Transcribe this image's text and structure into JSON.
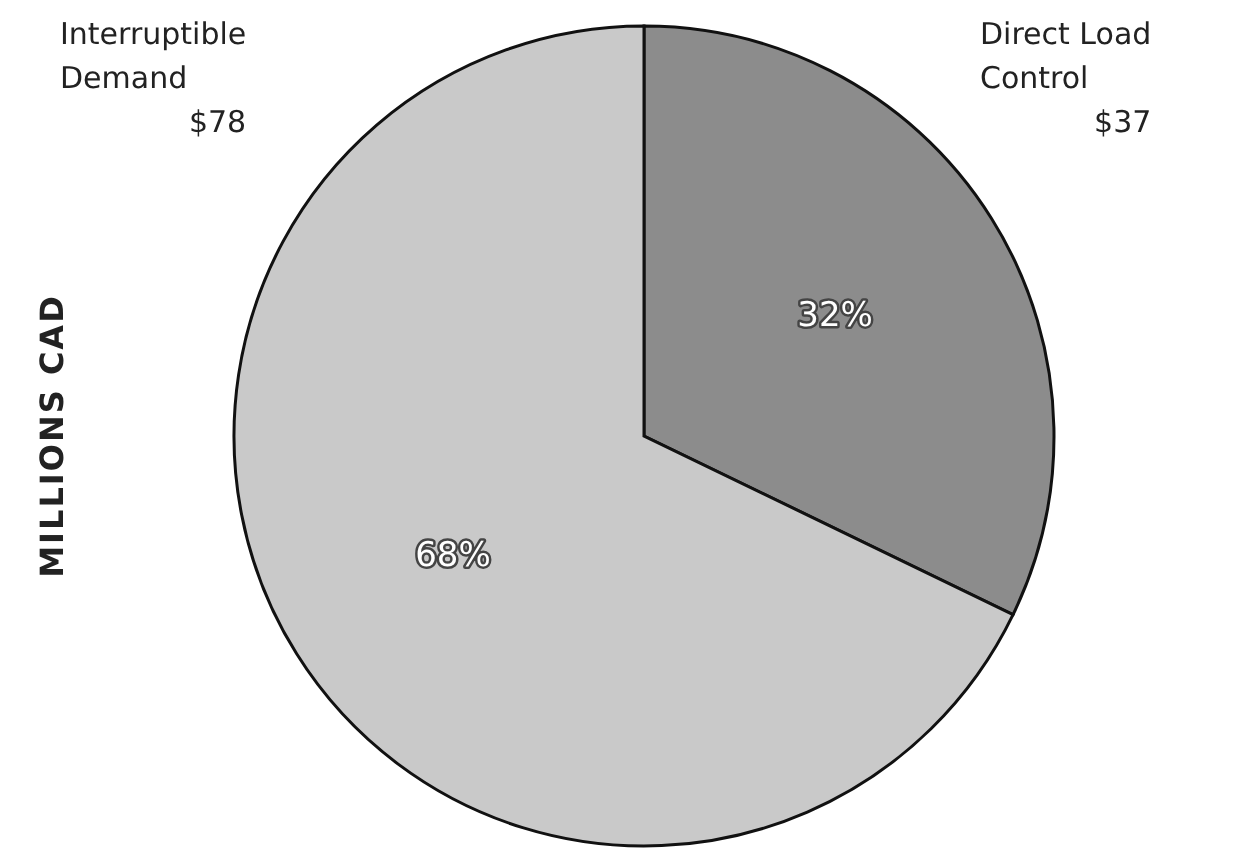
{
  "chart_data": {
    "type": "pie",
    "ylabel": "MILLIONS CAD",
    "categories": [
      "Direct Load Control",
      "Interruptible Demand"
    ],
    "values": [
      37,
      78
    ],
    "colors": [
      "#8c8c8c",
      "#c9c9c9"
    ],
    "value_labels": [
      "$37",
      "$78"
    ],
    "annotations": [
      "32%",
      "68%"
    ]
  }
}
